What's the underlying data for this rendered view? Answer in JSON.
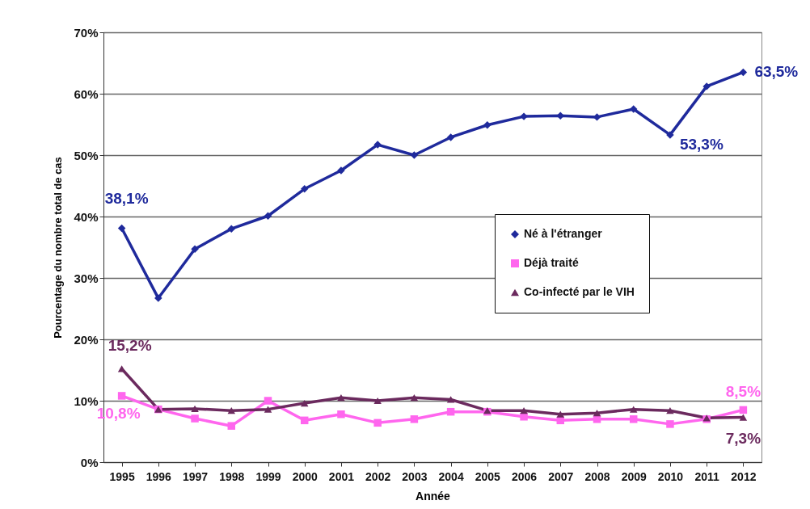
{
  "chart_data": {
    "type": "line",
    "xlabel": "Année",
    "ylabel": "Pourcentage du nombre total de cas",
    "categories": [
      "1995",
      "1996",
      "1997",
      "1998",
      "1999",
      "2000",
      "2001",
      "2002",
      "2003",
      "2004",
      "2005",
      "2006",
      "2007",
      "2008",
      "2009",
      "2010",
      "2011",
      "2012"
    ],
    "series": [
      {
        "name": "Né à l'étranger",
        "color": "#1f2a9c",
        "marker": "diamond",
        "values": [
          38.1,
          26.7,
          34.7,
          38.0,
          40.1,
          44.5,
          47.5,
          51.7,
          50.0,
          52.9,
          54.9,
          56.3,
          56.4,
          56.2,
          57.5,
          53.3,
          61.2,
          63.5
        ]
      },
      {
        "name": "Déjà traité",
        "color": "#ff66ee",
        "marker": "square",
        "values": [
          10.8,
          8.6,
          7.1,
          5.9,
          10.0,
          6.8,
          7.8,
          6.4,
          7.0,
          8.2,
          8.2,
          7.4,
          6.8,
          7.0,
          7.0,
          6.2,
          7.0,
          8.5
        ]
      },
      {
        "name": "Co-infecté par le VIH",
        "color": "#6b2a5e",
        "marker": "triangle",
        "values": [
          15.2,
          8.6,
          8.7,
          8.4,
          8.6,
          9.6,
          10.5,
          10.0,
          10.5,
          10.2,
          8.4,
          8.4,
          7.8,
          8.0,
          8.6,
          8.4,
          7.2,
          7.3
        ]
      }
    ],
    "ylim": [
      0,
      70
    ],
    "yticks": [
      {
        "value": 0,
        "label": "0%"
      },
      {
        "value": 10,
        "label": "10%"
      },
      {
        "value": 20,
        "label": "20%"
      },
      {
        "value": 30,
        "label": "30%"
      },
      {
        "value": 40,
        "label": "40%"
      },
      {
        "value": 50,
        "label": "50%"
      },
      {
        "value": 60,
        "label": "60%"
      },
      {
        "value": 70,
        "label": "70%"
      }
    ],
    "grid": "y",
    "legend": "right",
    "line_style": "solid",
    "annotations": [
      {
        "text": "38,1%",
        "x": "1995",
        "y": 38.1
      },
      {
        "text": "53,3%",
        "x": "2010",
        "y": 53.3
      },
      {
        "text": "63,5%",
        "x": "2012",
        "y": 63.5
      },
      {
        "text": "15,2%",
        "x": "1995",
        "y": 15.2
      },
      {
        "text": "10,8%",
        "x": "1995",
        "y": 10.8
      },
      {
        "text": "8,5%",
        "x": "2012",
        "y": 8.5
      },
      {
        "text": "7,3%",
        "x": "2012",
        "y": 7.3
      }
    ]
  }
}
